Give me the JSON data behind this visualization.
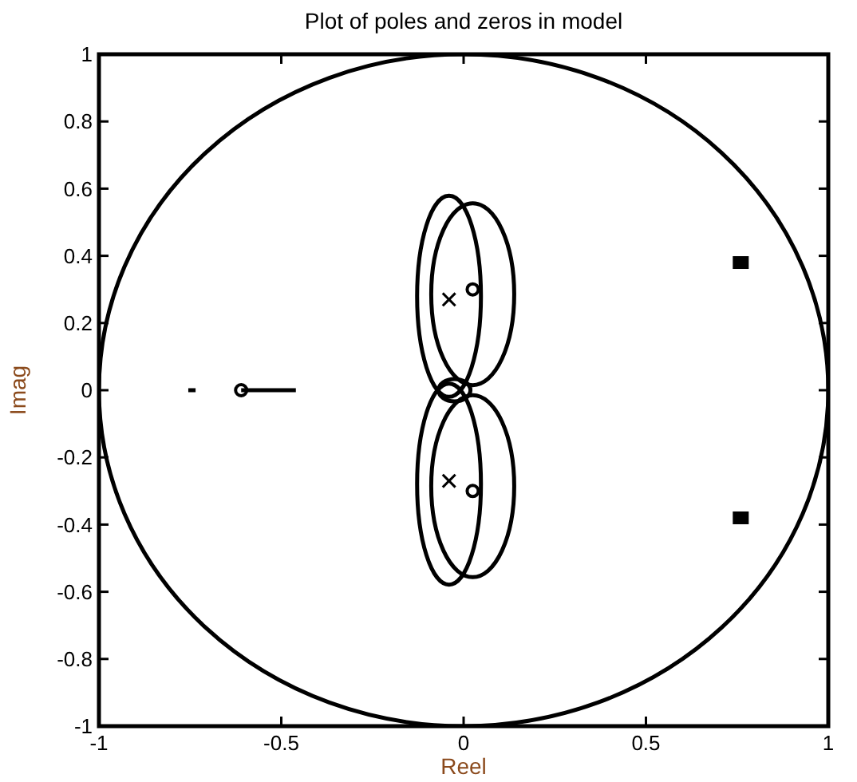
{
  "chart_data": {
    "type": "scatter",
    "title": "Plot of poles and zeros in model",
    "xlabel": "Reel",
    "ylabel": "Imag",
    "xlim": [
      -1,
      1
    ],
    "ylim": [
      -1,
      1
    ],
    "xticks": [
      -1,
      -0.5,
      0,
      0.5,
      1
    ],
    "yticks": [
      -1,
      -0.8,
      -0.6,
      -0.4,
      -0.2,
      0,
      0.2,
      0.4,
      0.6,
      0.8,
      1
    ],
    "grid": false,
    "series": [
      {
        "type": "line",
        "color": "#000000",
        "x": [
          -0.61,
          -0.46
        ],
        "values": [
          0,
          0
        ]
      },
      {
        "type": "line",
        "color": "#000000",
        "x": [
          -0.755,
          -0.735
        ],
        "values": [
          0,
          0
        ]
      },
      {
        "marker": "cross",
        "color": "#000000",
        "x": [
          -0.04,
          -0.04
        ],
        "values": [
          0.27,
          -0.27
        ]
      },
      {
        "marker": "circle",
        "color": "#000000",
        "x": [
          0.025,
          0.025,
          -0.61
        ],
        "values": [
          0.3,
          -0.3,
          0
        ]
      },
      {
        "marker": "square",
        "color": "#000000",
        "x": [
          0.76,
          0.76
        ],
        "values": [
          0.38,
          -0.38
        ]
      }
    ]
  }
}
